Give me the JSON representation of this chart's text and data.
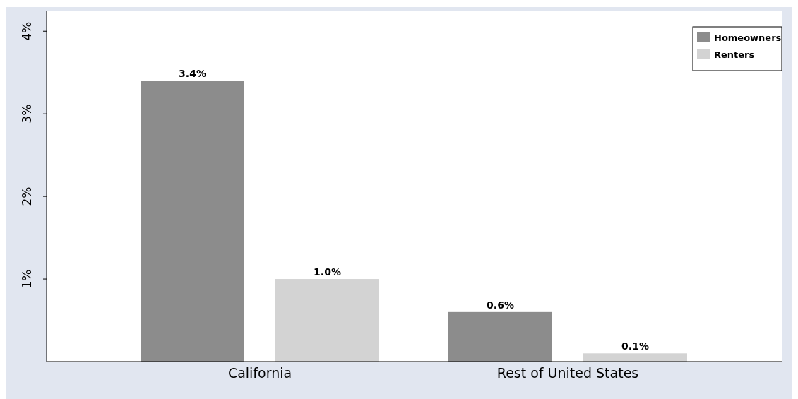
{
  "chart_data": {
    "type": "bar",
    "categories": [
      "California",
      "Rest of United States"
    ],
    "series": [
      {
        "name": "Homeowners",
        "color": "#8c8c8c",
        "values": [
          3.4,
          0.6
        ],
        "value_labels": [
          "3.4%",
          "0.6%"
        ]
      },
      {
        "name": "Renters",
        "color": "#d3d3d3",
        "values": [
          1.0,
          0.1
        ],
        "value_labels": [
          "1.0%",
          "0.1%"
        ]
      }
    ],
    "ylim": [
      0,
      4.25
    ],
    "yticks": [
      {
        "value": 1,
        "label": "1%"
      },
      {
        "value": 2,
        "label": "2%"
      },
      {
        "value": 3,
        "label": "3%"
      },
      {
        "value": 4,
        "label": "4%"
      }
    ],
    "grid": false,
    "legend": "top right"
  }
}
